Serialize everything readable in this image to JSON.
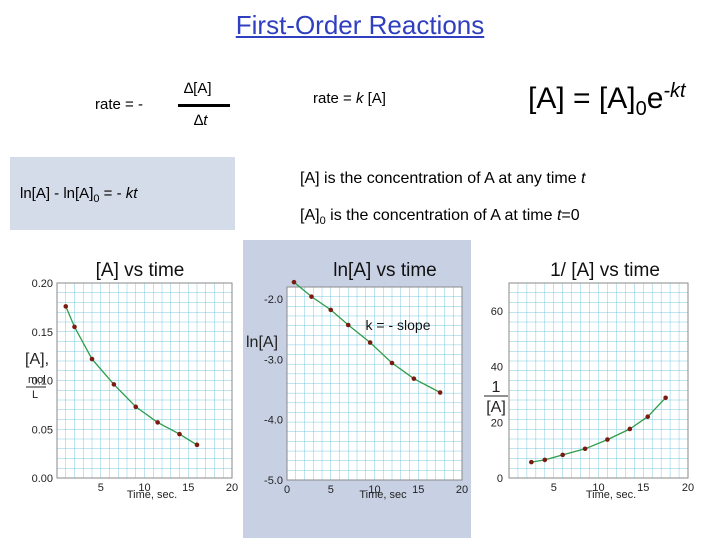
{
  "title": "First-Order Reactions",
  "rate_def": {
    "prefix": "rate = -",
    "numerator": "∆[A]",
    "denominator_delta": "∆",
    "denominator_var": "t"
  },
  "rate_law": {
    "prefix": "rate = ",
    "k": "k",
    "suffix": " [A]"
  },
  "big_equation": {
    "lhs": "[A] = [A]",
    "sub": "0",
    "base": "e",
    "exponent": "-kt"
  },
  "integrated": {
    "part1": "ln[A] - ln[A]",
    "sub": "0",
    "part2": " = - ",
    "kt": "kt"
  },
  "desc1": {
    "text": "[A] is the concentration of A at any time ",
    "t": "t"
  },
  "desc2": {
    "part1": "[A]",
    "sub": "0",
    "part2": " is the concentration of A at time ",
    "t": "t",
    "part3": "=0"
  },
  "colors": {
    "title": "#2f3fc0",
    "curve": "#2e9c4a",
    "grid": "#49b4d6",
    "point": "#7a1a10",
    "panel": "#c8d0e4",
    "box": "#d4dbe9"
  },
  "chart_data": [
    {
      "type": "scatter",
      "title": "[A]  vs time",
      "xlabel": "Time, sec.",
      "ylabel_lines": [
        "[A],",
        "mol",
        "L"
      ],
      "xlim": [
        0,
        20
      ],
      "ylim": [
        0.0,
        0.2
      ],
      "xticks": [
        5,
        10,
        15,
        20
      ],
      "yticks": [
        0.0,
        0.05,
        0.1,
        0.15,
        0.2
      ],
      "ytick_labels": [
        "0.00",
        "0.05",
        "0.10",
        "0.15",
        "0.20"
      ],
      "x": [
        1,
        2,
        4,
        6.5,
        9,
        11.5,
        14,
        16
      ],
      "y": [
        0.176,
        0.155,
        0.122,
        0.096,
        0.073,
        0.057,
        0.045,
        0.034
      ],
      "grid": true
    },
    {
      "type": "scatter",
      "title": "ln[A] vs time",
      "xlabel": "Time, sec",
      "ylabel": "ln[A]",
      "annotation": "k = - slope",
      "xlim": [
        0,
        20
      ],
      "ylim": [
        -5.0,
        -1.8
      ],
      "xticks": [
        0,
        5,
        10,
        15,
        20
      ],
      "yticks": [
        -2.0,
        -3.0,
        -4.0,
        -5.0
      ],
      "ytick_labels": [
        "-2.0",
        "-3.0",
        "-4.0",
        "-5.0"
      ],
      "x": [
        0.8,
        2.8,
        5,
        7,
        9.5,
        12,
        14.5,
        17.5
      ],
      "y": [
        -1.72,
        -1.96,
        -2.18,
        -2.43,
        -2.72,
        -3.06,
        -3.32,
        -3.55
      ],
      "grid": true
    },
    {
      "type": "scatter",
      "title": "1/ [A] vs time",
      "xlabel": "Time, sec.",
      "ylabel_lines": [
        "1",
        "[A]"
      ],
      "xlim": [
        0,
        20
      ],
      "ylim": [
        0,
        70
      ],
      "xticks": [
        5,
        10,
        15,
        20
      ],
      "yticks": [
        0,
        20,
        40,
        60
      ],
      "ytick_labels": [
        "0",
        "20",
        "40",
        "60"
      ],
      "x": [
        2.5,
        4,
        6,
        8.5,
        11,
        13.5,
        15.5,
        17.5
      ],
      "y": [
        5.7,
        6.5,
        8.3,
        10.5,
        13.8,
        17.6,
        22.0,
        28.8
      ],
      "grid": true
    }
  ]
}
